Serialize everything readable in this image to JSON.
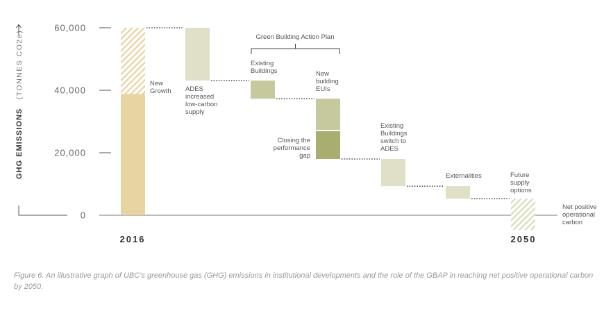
{
  "chart_data": {
    "type": "waterfall",
    "ylabel": "GHG EMISSIONS",
    "ylabel_units": "(TONNES CO2e)",
    "ylim": [
      -5000,
      60000
    ],
    "yticks": [
      0,
      20000,
      40000,
      60000
    ],
    "ytick_labels": [
      "0",
      "20,000",
      "40,000",
      "60,000"
    ],
    "grid": false,
    "steps": [
      {
        "key": "base-2016",
        "start": 0,
        "end": 38800,
        "style": "solid",
        "color": "#e8d3a2"
      },
      {
        "key": "new-growth",
        "label": [
          "New",
          "Growth"
        ],
        "start": 38800,
        "end": 60000,
        "style": "hatched",
        "color": "#e8d3a2"
      },
      {
        "key": "ades-supply",
        "label": [
          "ADES",
          "increased",
          "low-carbon",
          "supply"
        ],
        "start": 60000,
        "end": 43100,
        "style": "solid",
        "color": "#dfe0c7"
      },
      {
        "key": "existing-buildings",
        "label": [
          "Existing",
          "Buildings"
        ],
        "start": 43100,
        "end": 37300,
        "style": "solid",
        "color": "#c6c89d"
      },
      {
        "key": "new-building-euis",
        "label": [
          "New",
          "building",
          "EUIs"
        ],
        "start": 37300,
        "end": 27100,
        "style": "solid",
        "color": "#c6c89d"
      },
      {
        "key": "closing-performance-gap",
        "label": [
          "Closing the",
          "performance",
          "gap"
        ],
        "start": 27100,
        "end": 18000,
        "style": "solid",
        "color": "#a9ad6f"
      },
      {
        "key": "existing-switch-ades",
        "label": [
          "Existing",
          "Buildings",
          "switch to",
          "ADES"
        ],
        "start": 18000,
        "end": 9300,
        "style": "solid",
        "color": "#dfe0c7"
      },
      {
        "key": "externalities",
        "label": [
          "Externalities"
        ],
        "start": 9300,
        "end": 5300,
        "style": "solid",
        "color": "#dfe0c7"
      },
      {
        "key": "future-supply",
        "label": [
          "Future",
          "supply",
          "options"
        ],
        "start": 5300,
        "end": -4700,
        "style": "hatched",
        "color": "#d9dcb8"
      }
    ],
    "x_labels": [
      "2016",
      "2050"
    ],
    "group_bracket": "Green Building Action Plan",
    "end_annotation": [
      "Net positive",
      "operational",
      "carbon"
    ]
  },
  "caption": "Figure 6. An illustrative graph of UBC’s greenhouse gas (GHG) emissions in institutional developments and the role of the GBAP in reaching net positive operational carbon by 2050."
}
